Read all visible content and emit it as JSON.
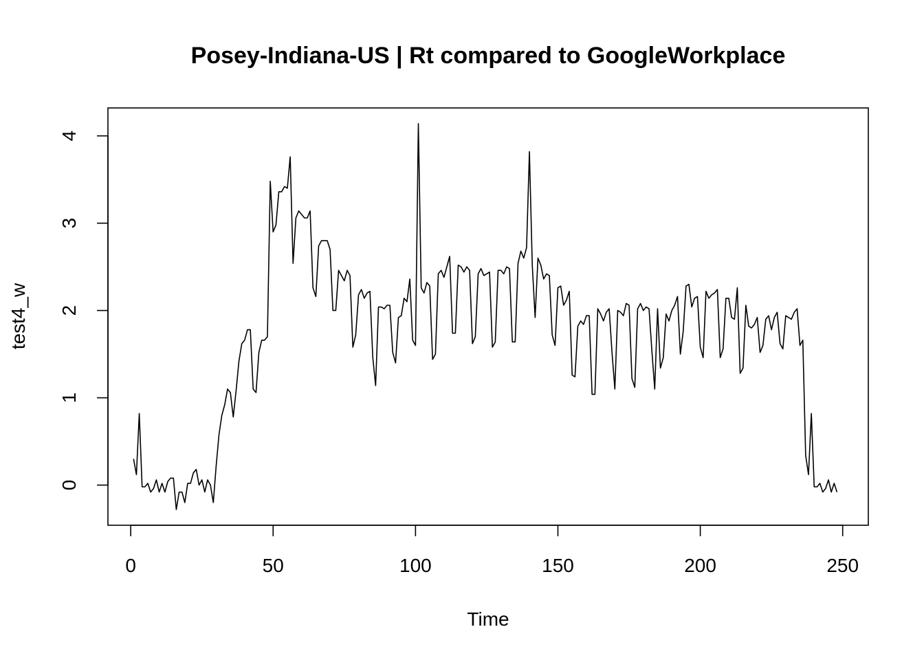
{
  "chart_data": {
    "type": "line",
    "title": "Posey-Indiana-US | Rt compared to GoogleWorkplace",
    "xlabel": "Time",
    "ylabel": "test4_w",
    "xlim": [
      -8,
      259
    ],
    "ylim": [
      -0.46,
      4.32
    ],
    "x_ticks": [
      0,
      50,
      100,
      150,
      200,
      250
    ],
    "y_ticks": [
      0,
      1,
      2,
      3,
      4
    ],
    "grid": false,
    "legend": "none",
    "series": [
      {
        "x_start": 1,
        "x_step": 1,
        "values": [
          0.3,
          0.12,
          0.82,
          -0.02,
          -0.02,
          0.02,
          -0.08,
          -0.04,
          0.06,
          -0.08,
          0.02,
          -0.08,
          0.04,
          0.08,
          0.08,
          -0.28,
          -0.08,
          -0.08,
          -0.2,
          0.02,
          0.02,
          0.14,
          0.18,
          0.0,
          0.06,
          -0.08,
          0.06,
          0.0,
          -0.2,
          0.22,
          0.58,
          0.8,
          0.92,
          1.1,
          1.06,
          0.78,
          1.08,
          1.42,
          1.62,
          1.66,
          1.78,
          1.78,
          1.1,
          1.06,
          1.52,
          1.66,
          1.66,
          1.7,
          3.48,
          2.9,
          2.98,
          3.36,
          3.36,
          3.42,
          3.4,
          3.76,
          2.54,
          3.06,
          3.14,
          3.1,
          3.06,
          3.06,
          3.14,
          2.26,
          2.16,
          2.74,
          2.8,
          2.8,
          2.8,
          2.7,
          2.0,
          2.0,
          2.46,
          2.4,
          2.34,
          2.46,
          2.4,
          1.58,
          1.72,
          2.18,
          2.24,
          2.14,
          2.2,
          2.22,
          1.46,
          1.14,
          2.04,
          2.04,
          2.02,
          2.06,
          2.06,
          1.52,
          1.4,
          1.92,
          1.94,
          2.14,
          2.1,
          2.36,
          1.66,
          1.6,
          4.14,
          2.26,
          2.2,
          2.32,
          2.28,
          1.44,
          1.5,
          2.42,
          2.46,
          2.38,
          2.5,
          2.62,
          1.74,
          1.74,
          2.52,
          2.5,
          2.44,
          2.5,
          2.46,
          1.62,
          1.7,
          2.42,
          2.48,
          2.4,
          2.42,
          2.44,
          1.58,
          1.64,
          2.46,
          2.46,
          2.42,
          2.5,
          2.48,
          1.64,
          1.64,
          2.54,
          2.68,
          2.6,
          2.72,
          3.82,
          2.52,
          1.92,
          2.6,
          2.52,
          2.36,
          2.42,
          2.4,
          1.72,
          1.6,
          2.26,
          2.28,
          2.06,
          2.12,
          2.22,
          1.26,
          1.24,
          1.82,
          1.88,
          1.84,
          1.94,
          1.94,
          1.04,
          1.04,
          2.02,
          1.96,
          1.88,
          1.98,
          2.02,
          1.52,
          1.1,
          2.0,
          1.98,
          1.94,
          2.08,
          2.06,
          1.22,
          1.12,
          2.02,
          2.08,
          2.0,
          2.04,
          2.02,
          1.54,
          1.1,
          2.02,
          1.34,
          1.46,
          1.96,
          1.88,
          2.0,
          2.06,
          2.16,
          1.5,
          1.76,
          2.28,
          2.3,
          2.04,
          2.14,
          2.16,
          1.58,
          1.46,
          2.22,
          2.14,
          2.18,
          2.2,
          2.24,
          1.46,
          1.56,
          2.14,
          2.14,
          1.92,
          1.9,
          2.26,
          1.28,
          1.34,
          2.06,
          1.82,
          1.8,
          1.84,
          1.92,
          1.52,
          1.6,
          1.9,
          1.94,
          1.78,
          1.92,
          1.98,
          1.62,
          1.56,
          1.94,
          1.92,
          1.9,
          1.98,
          2.02,
          1.6,
          1.66,
          0.34,
          0.12,
          0.82,
          -0.02,
          -0.02,
          0.02,
          -0.08,
          -0.04,
          0.06,
          -0.08,
          0.02,
          -0.08
        ]
      }
    ]
  }
}
